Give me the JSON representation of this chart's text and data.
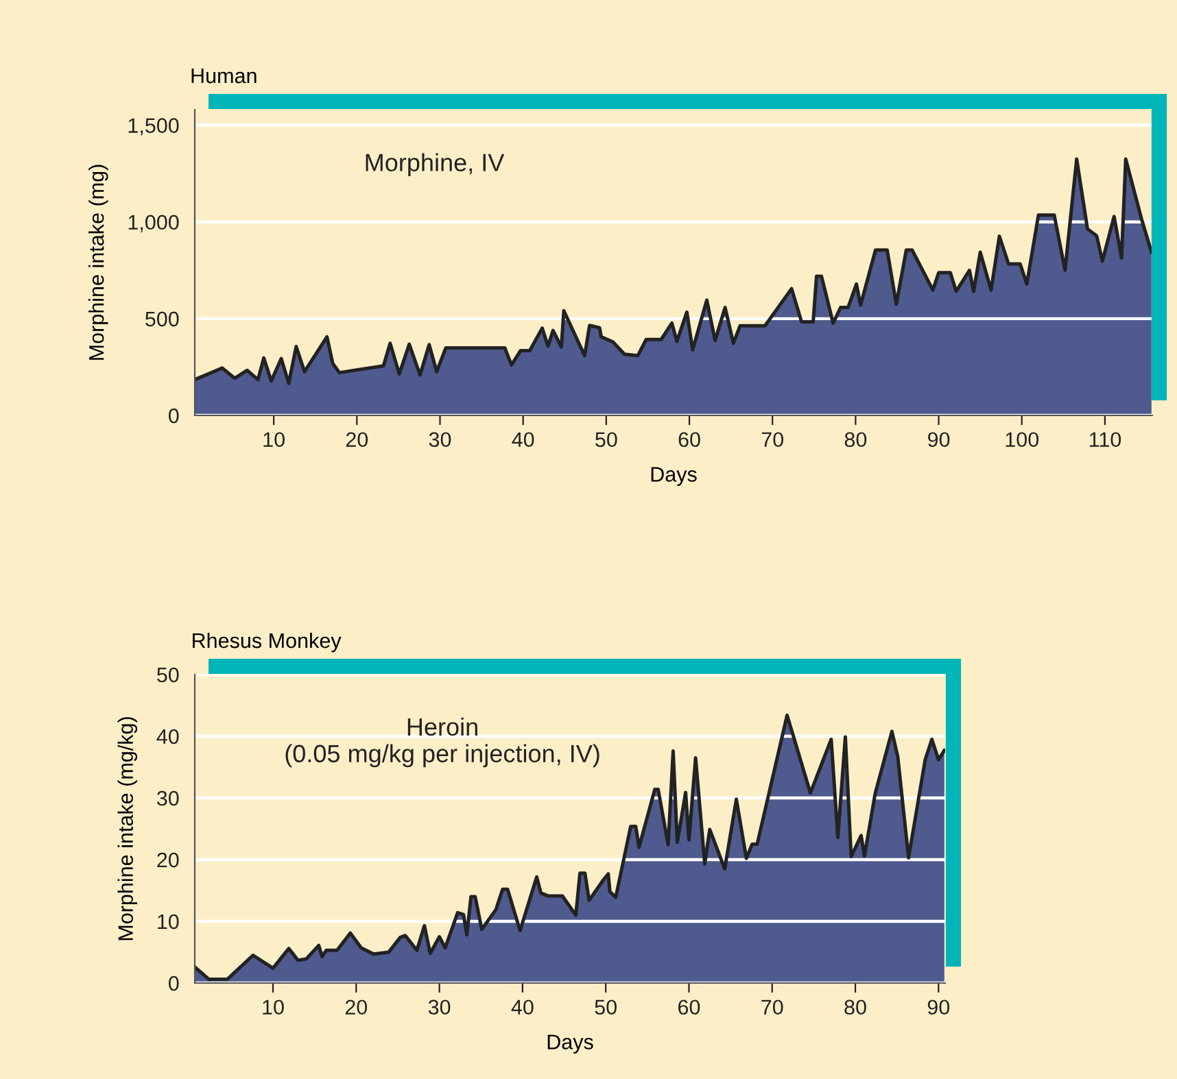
{
  "chart_data": [
    {
      "type": "area",
      "title": "Human",
      "xlabel": "Days",
      "ylabel": "Morphine intake (mg)",
      "annotations": [
        "Morphine, IV"
      ],
      "grid": "y",
      "legend": false,
      "xlim": [
        0.5,
        115.7
      ],
      "ylim": [
        0,
        1580
      ],
      "xticks": [
        10,
        20,
        30,
        40,
        50,
        60,
        70,
        80,
        90,
        100,
        110
      ],
      "yticks": [
        0,
        500,
        {
          "value": 1000,
          "label": "1,000"
        },
        {
          "value": 1500,
          "label": "1,500"
        }
      ],
      "series": [
        {
          "color": "#4f5a8e",
          "x": [
            0.5,
            3.8,
            5.3,
            6.8,
            8.1,
            8.8,
            9.7,
            10.9,
            11.8,
            12.7,
            13.7,
            16.4,
            17.1,
            17.9,
            23.2,
            24.0,
            25.1,
            26.3,
            27.6,
            28.7,
            29.6,
            30.7,
            37.8,
            38.6,
            39.7,
            40.8,
            42.3,
            43.0,
            43.6,
            44.6,
            44.9,
            47.4,
            48.0,
            49.2,
            49.4,
            50.8,
            52.2,
            53.8,
            54.8,
            56.6,
            57.9,
            58.5,
            59.7,
            60.4,
            62.1,
            63.1,
            64.3,
            65.3,
            66.1,
            69.1,
            72.3,
            73.5,
            74.9,
            75.3,
            75.9,
            77.3,
            78.2,
            79.1,
            80.1,
            80.6,
            82.4,
            83.8,
            84.9,
            86.1,
            86.8,
            89.3,
            90.0,
            91.4,
            92.1,
            93.7,
            94.2,
            95.0,
            96.3,
            97.3,
            98.4,
            99.8,
            100.6,
            102.0,
            103.9,
            105.2,
            106.6,
            107.9,
            109.0,
            109.7,
            111.1,
            112.0,
            112.5,
            114.4,
            115.6
          ],
          "values": [
            185,
            245,
            192,
            233,
            185,
            297,
            178,
            294,
            166,
            356,
            226,
            406,
            268,
            221,
            256,
            373,
            214,
            368,
            209,
            366,
            226,
            349,
            349,
            261,
            335,
            335,
            451,
            358,
            439,
            354,
            541,
            309,
            465,
            453,
            406,
            380,
            316,
            309,
            392,
            392,
            477,
            382,
            534,
            339,
            596,
            387,
            558,
            373,
            463,
            463,
            655,
            484,
            484,
            719,
            719,
            477,
            558,
            558,
            679,
            570,
            855,
            855,
            575,
            855,
            855,
            648,
            738,
            738,
            641,
            750,
            641,
            843,
            648,
            926,
            783,
            783,
            679,
            1035,
            1035,
            750,
            1325,
            964,
            928,
            798,
            1028,
            814,
            1325,
            1016,
            843
          ]
        }
      ]
    },
    {
      "type": "area",
      "title": "Rhesus Monkey",
      "xlabel": "Days",
      "ylabel": "Morphine intake (mg/kg)",
      "annotations": [
        "Heroin\n(0.05 mg/kg per injection, IV)"
      ],
      "grid": "y",
      "legend": false,
      "xlim": [
        0.6,
        90.8
      ],
      "ylim": [
        0,
        50
      ],
      "xticks": [
        10,
        20,
        30,
        40,
        50,
        60,
        70,
        80,
        90
      ],
      "yticks": [
        0,
        10,
        20,
        30,
        40,
        50
      ],
      "series": [
        {
          "color": "#4f5a8e",
          "x": [
            0.6,
            2.3,
            4.5,
            7.6,
            10.0,
            11.9,
            13.0,
            14.0,
            15.5,
            15.9,
            16.4,
            17.7,
            19.3,
            20.6,
            22.1,
            23.9,
            25.3,
            25.9,
            27.3,
            28.2,
            28.9,
            30.0,
            30.7,
            32.2,
            32.9,
            33.3,
            33.8,
            34.3,
            35.1,
            36.8,
            37.6,
            38.2,
            39.7,
            41.7,
            42.2,
            43.1,
            44.8,
            46.4,
            46.9,
            47.5,
            48.0,
            49.7,
            50.3,
            50.5,
            51.2,
            53.0,
            53.6,
            54.0,
            55.9,
            56.3,
            57.5,
            58.1,
            58.6,
            59.6,
            60.0,
            60.8,
            61.9,
            62.5,
            64.3,
            65.7,
            66.9,
            67.6,
            68.2,
            71.8,
            74.6,
            77.1,
            77.9,
            78.8,
            79.5,
            80.7,
            81.1,
            82.4,
            84.4,
            85.1,
            86.4,
            88.4,
            89.2,
            90.0,
            90.7
          ],
          "values": [
            2.6,
            0.6,
            0.6,
            4.5,
            2.4,
            5.6,
            3.7,
            3.9,
            6.1,
            4.3,
            5.3,
            5.3,
            8.1,
            5.7,
            4.7,
            5.0,
            7.4,
            7.7,
            5.3,
            9.3,
            4.8,
            7.5,
            5.7,
            11.4,
            11.1,
            7.8,
            14.0,
            14.0,
            8.7,
            11.9,
            15.2,
            15.2,
            8.5,
            17.2,
            14.6,
            14.1,
            14.1,
            11.0,
            17.8,
            17.8,
            13.4,
            16.7,
            17.7,
            14.8,
            13.9,
            25.4,
            25.4,
            22.0,
            31.4,
            31.4,
            22.4,
            37.6,
            22.8,
            30.9,
            23.2,
            36.5,
            19.3,
            24.9,
            18.5,
            29.8,
            20.2,
            22.5,
            22.5,
            43.4,
            30.8,
            39.5,
            23.6,
            39.9,
            20.5,
            23.9,
            20.6,
            30.8,
            40.8,
            36.7,
            20.3,
            36.2,
            39.5,
            36.2,
            37.7
          ]
        }
      ]
    }
  ]
}
